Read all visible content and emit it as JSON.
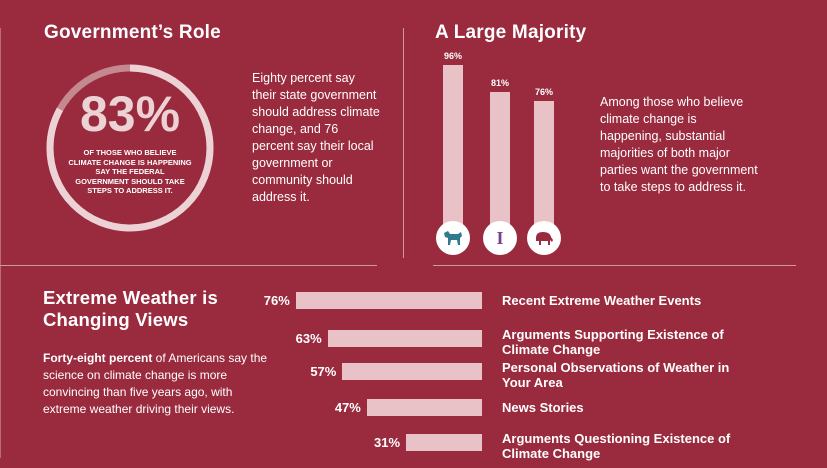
{
  "colors": {
    "background": "#9a2a3d",
    "bar": "#e8c2c6",
    "ring_track": "#c4888f",
    "ring_fill": "#ecd2d5",
    "democrat_icon": "#2f7a8c",
    "independent_icon": "#7a3f8f",
    "republican_icon": "#9a2a3d"
  },
  "gov_role": {
    "title": "Government’s Role",
    "ring_percent": "83%",
    "ring_value": 83,
    "ring_caption": "OF THOSE WHO BELIEVE CLIMATE CHANGE IS HAPPENING SAY THE FEDERAL GOVERNMENT SHOULD TAKE STEPS TO ADDRESS IT.",
    "text": "Eighty percent say their state government should address climate change, and 76 percent say their local government or community should address it."
  },
  "majority": {
    "title": "A Large Majority",
    "text": "Among those who believe climate change is happening, substantial majorities of both major parties want the government to take steps to address it.",
    "icons": {
      "democrat": "donkey-icon",
      "independent_letter": "I",
      "republican": "elephant-icon"
    }
  },
  "weather": {
    "title_line1": "Extreme Weather is",
    "title_line2": "Changing Views",
    "text_bold": "Forty-eight percent",
    "text_rest": " of Americans say the science on climate change is more convincing than five years ago, with extreme weather driving their views."
  },
  "chart_data": [
    {
      "type": "bar",
      "orientation": "vertical",
      "categories": [
        "Democrats",
        "Independents",
        "Republicans"
      ],
      "values": [
        96,
        81,
        76
      ],
      "value_labels": [
        "96%",
        "81%",
        "76%"
      ]
    },
    {
      "type": "bar",
      "orientation": "horizontal",
      "categories": [
        "Recent Extreme Weather Events",
        "Arguments Supporting Existence of Climate Change",
        "Personal Observations of Weather in Your Area",
        "News Stories",
        "Arguments Questioning Existence of Climate Change"
      ],
      "values": [
        76,
        63,
        57,
        47,
        31
      ],
      "value_labels": [
        "76%",
        "63%",
        "57%",
        "47%",
        "31%"
      ]
    }
  ]
}
